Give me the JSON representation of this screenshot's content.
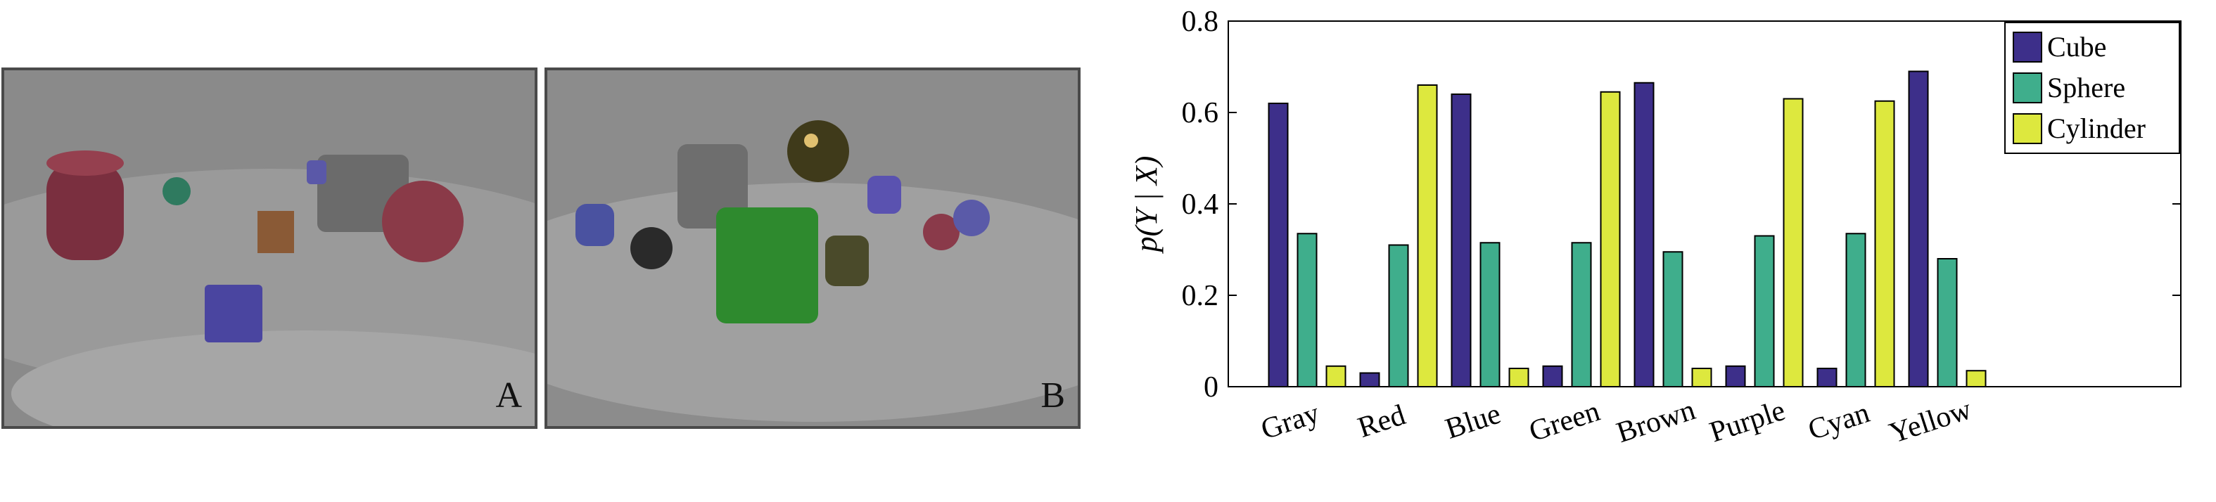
{
  "panels": [
    {
      "letter": "A"
    },
    {
      "letter": "B"
    }
  ],
  "chart_data": {
    "type": "bar",
    "categories": [
      "Gray",
      "Red",
      "Blue",
      "Green",
      "Brown",
      "Purple",
      "Cyan",
      "Yellow"
    ],
    "series": [
      {
        "name": "Cube",
        "color": "#3d2f8a",
        "values": [
          0.62,
          0.03,
          0.64,
          0.045,
          0.665,
          0.045,
          0.04,
          0.69
        ]
      },
      {
        "name": "Sphere",
        "color": "#3fae8c",
        "values": [
          0.335,
          0.31,
          0.315,
          0.315,
          0.295,
          0.33,
          0.335,
          0.28
        ]
      },
      {
        "name": "Cylinder",
        "color": "#dde83e",
        "values": [
          0.045,
          0.66,
          0.04,
          0.645,
          0.04,
          0.63,
          0.625,
          0.035
        ]
      }
    ],
    "ylabel": "p(Y | X)",
    "xlabel": "",
    "title": "",
    "ylim": [
      0,
      0.8
    ],
    "yticks": [
      "0",
      "0.2",
      "0.4",
      "0.6",
      "0.8"
    ],
    "legend_position": "top-right",
    "grid": false
  }
}
